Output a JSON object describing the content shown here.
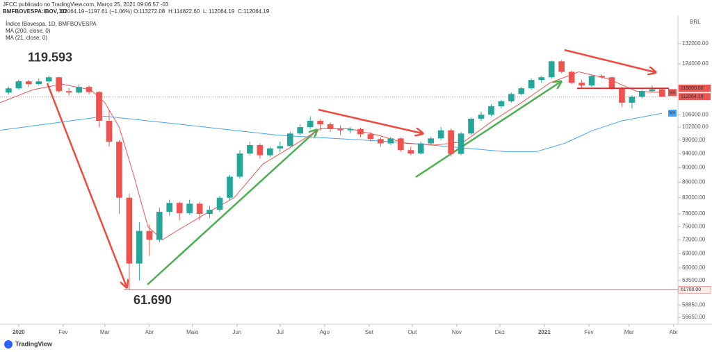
{
  "chart_data": {
    "type": "candlestick",
    "header": "JFCC publicado no TradingView.com, Março 25, 2021 09:06:57 -03",
    "symbol": "BMFBOVESPA:IBOV, 1D",
    "last": "112064.19",
    "change": "−1197.61 (−1.06%)",
    "quote": [
      {
        "key": "O:",
        "value": "113272.08"
      },
      {
        "key": "H:",
        "value": "114822.60"
      },
      {
        "key": "L:",
        "value": "112064.19"
      },
      {
        "key": "C:",
        "value": "112064.19"
      }
    ],
    "legend": "Índice IBovespa, 1D, BMFBOVESPA",
    "footer": "TradingView",
    "log": true,
    "up_color": "#26a69a",
    "down_color": "#ef5350",
    "x": [
      -7,
      0,
      7,
      14,
      21,
      28,
      35,
      42,
      49,
      56,
      63,
      70,
      77,
      84,
      91,
      98,
      105,
      112,
      119,
      126,
      133,
      140,
      147,
      154,
      161,
      168,
      175,
      182,
      189,
      196,
      203,
      210,
      217,
      224,
      231,
      238,
      245,
      252,
      259,
      266,
      273,
      280,
      287,
      294,
      301,
      308,
      315,
      322,
      329,
      336,
      343,
      350,
      357,
      364,
      371,
      378,
      385,
      392,
      399,
      406,
      413,
      420,
      427,
      434,
      441,
      448
    ],
    "open": [
      113500,
      115000,
      117500,
      116500,
      117500,
      119000,
      114000,
      113500,
      115500,
      113700,
      104000,
      97500,
      82000,
      66900,
      74000,
      72000,
      78500,
      80700,
      78200,
      80500,
      78000,
      79000,
      82000,
      87500,
      94000,
      96500,
      93500,
      95500,
      96200,
      100000,
      102000,
      104000,
      102900,
      101500,
      101000,
      101400,
      99800,
      98300,
      97000,
      98500,
      95000,
      94000,
      97000,
      98500,
      101000,
      93900,
      100000,
      104700,
      106000,
      108800,
      110500,
      113000,
      115000,
      118000,
      119000,
      125000,
      121000,
      117000,
      116000,
      119500,
      119000,
      115000,
      110000,
      112000,
      114000,
      114600
    ],
    "high": [
      115500,
      118200,
      118000,
      118500,
      119593,
      119200,
      115000,
      116500,
      116000,
      114000,
      107500,
      98000,
      83000,
      76000,
      75500,
      79500,
      81500,
      81000,
      81500,
      81000,
      80000,
      82500,
      88000,
      95000,
      97500,
      97000,
      96000,
      97500,
      100500,
      103000,
      105500,
      104500,
      103500,
      102500,
      102000,
      101800,
      100500,
      98800,
      99000,
      98800,
      96000,
      97500,
      99000,
      102000,
      101500,
      100500,
      105000,
      107000,
      109500,
      111000,
      113500,
      115500,
      118500,
      119500,
      125300,
      125500,
      121500,
      118000,
      120000,
      120000,
      119200,
      115500,
      112500,
      114500,
      116000,
      114800
    ],
    "low": [
      112800,
      114500,
      115500,
      116000,
      116800,
      113500,
      112500,
      113000,
      112800,
      102000,
      96000,
      78000,
      61690,
      63500,
      68500,
      71500,
      77500,
      76500,
      77800,
      76500,
      77000,
      78500,
      81500,
      87000,
      93500,
      92500,
      93000,
      94500,
      96000,
      99500,
      101500,
      101000,
      100500,
      99500,
      100000,
      99000,
      97500,
      96000,
      96500,
      94500,
      93500,
      93800,
      96500,
      98000,
      93300,
      93500,
      99500,
      104000,
      105500,
      108000,
      110000,
      112500,
      114500,
      117000,
      118500,
      120500,
      116500,
      115000,
      115500,
      118500,
      114500,
      108500,
      108000,
      111500,
      113500,
      112000
    ],
    "close": [
      115000,
      117500,
      116500,
      117500,
      119000,
      114000,
      113500,
      115500,
      113700,
      104000,
      97500,
      82000,
      66900,
      74000,
      72000,
      78500,
      80700,
      78200,
      80500,
      78000,
      79000,
      82000,
      87500,
      94000,
      96500,
      93500,
      95500,
      96200,
      100000,
      102000,
      104000,
      102900,
      101500,
      101000,
      101400,
      99800,
      98300,
      97000,
      98500,
      95000,
      94000,
      97000,
      98500,
      101000,
      93900,
      100000,
      104700,
      106000,
      108800,
      110500,
      113000,
      115000,
      118000,
      119000,
      125000,
      121000,
      117000,
      116000,
      119500,
      119000,
      115000,
      110000,
      112000,
      114000,
      114600,
      112064.19
    ],
    "series": [
      {
        "name": "MA (200, close, 0)",
        "tag": "MA",
        "color": "#42a5f5",
        "x": [
          -13,
          20,
          60,
          100,
          140,
          180,
          220,
          260,
          300,
          340,
          360,
          380,
          400,
          420,
          448
        ],
        "values": [
          101000,
          103000,
          105500,
          103500,
          101500,
          99500,
          98500,
          97500,
          96000,
          94500,
          94500,
          97000,
          101000,
          104000,
          106500
        ]
      },
      {
        "name": "MA (21, close, 0)",
        "tag": "MA",
        "color": "#ef5350",
        "x": [
          -13,
          10,
          30,
          50,
          60,
          70,
          80,
          90,
          100,
          110,
          130,
          150,
          170,
          190,
          210,
          230,
          250,
          270,
          290,
          310,
          330,
          350,
          370,
          390,
          410,
          430,
          448
        ],
        "values": [
          110000,
          114500,
          116500,
          114500,
          110000,
          102000,
          88000,
          75000,
          72000,
          74000,
          78000,
          82000,
          91000,
          96000,
          101500,
          101500,
          99500,
          97000,
          96500,
          97500,
          104000,
          110000,
          117000,
          121000,
          118500,
          114000,
          113500
        ]
      }
    ],
    "annotations": [
      {
        "value": 119593,
        "label": "119.593"
      },
      {
        "value": 61690,
        "label": "61.690"
      }
    ],
    "hlines": [
      {
        "value": 61700,
        "label": "61700.00"
      },
      {
        "value": 115000,
        "label": "115000.00"
      }
    ],
    "last_price": {
      "value": 112064.19,
      "label": "112064.19"
    },
    "axis_unit": "BRL",
    "xlim": [
      -13,
      459
    ],
    "ylim": [
      55700,
      143200
    ],
    "yticks": [
      {
        "value": 132000,
        "label": "132000.00"
      },
      {
        "value": 124000,
        "label": "124000.00"
      },
      {
        "value": 106000,
        "label": "106000.00"
      },
      {
        "value": 102000,
        "label": "102000.00"
      },
      {
        "value": 98000,
        "label": "98000.00"
      },
      {
        "value": 94000,
        "label": "94000.00"
      },
      {
        "value": 90000,
        "label": "90000.00"
      },
      {
        "value": 86000,
        "label": "86000.00"
      },
      {
        "value": 82000,
        "label": "82000.00"
      },
      {
        "value": 78000,
        "label": "78000.00"
      },
      {
        "value": 75000,
        "label": "75000.00"
      },
      {
        "value": 72000,
        "label": "72000.00"
      },
      {
        "value": 69000,
        "label": "69000.00"
      },
      {
        "value": 66000,
        "label": "66000.00"
      },
      {
        "value": 63500,
        "label": "63500.00"
      },
      {
        "value": 58850,
        "label": "58850.00"
      },
      {
        "value": 56650,
        "label": "56650.00"
      }
    ],
    "xticks": [
      {
        "value": 0,
        "label": "2020"
      },
      {
        "value": 31,
        "label": "Fev"
      },
      {
        "value": 60,
        "label": "Mar"
      },
      {
        "value": 91,
        "label": "Abr"
      },
      {
        "value": 121,
        "label": "Maio"
      },
      {
        "value": 152,
        "label": "Jun"
      },
      {
        "value": 182,
        "label": "Jul"
      },
      {
        "value": 213,
        "label": "Ago"
      },
      {
        "value": 244,
        "label": "Set"
      },
      {
        "value": 274,
        "label": "Out"
      },
      {
        "value": 305,
        "label": "Nov"
      },
      {
        "value": 335,
        "label": "Dez"
      },
      {
        "value": 366,
        "label": "2021"
      },
      {
        "value": 397,
        "label": "Fev"
      },
      {
        "value": 425,
        "label": "Mar"
      },
      {
        "value": 456,
        "label": "Abr"
      }
    ]
  }
}
